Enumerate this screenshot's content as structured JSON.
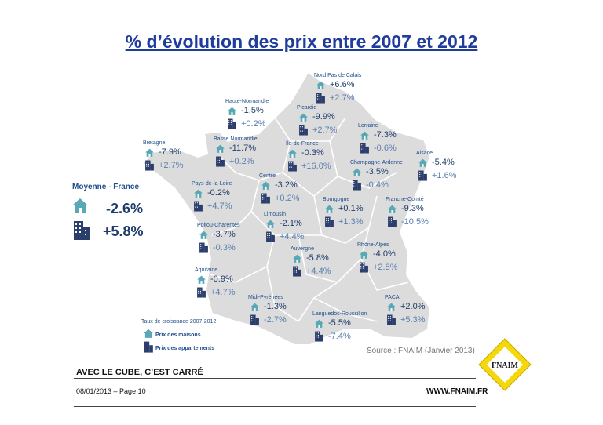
{
  "title": "% d’évolution des prix entre 2007 et 2012",
  "average": {
    "label": "Moyenne - France",
    "house": "-2.6%",
    "apartment": "+5.8%"
  },
  "regions": [
    {
      "name": "Nord Pas de Calais",
      "house": "+6.6%",
      "apartment": "+2.7%"
    },
    {
      "name": "Haute-Normandie",
      "house": "-1.5%",
      "apartment": "+0.2%"
    },
    {
      "name": "Picardie",
      "house": "-9.9%",
      "apartment": "+2.7%"
    },
    {
      "name": "Lorraine",
      "house": "-7.3%",
      "apartment": "-0.6%"
    },
    {
      "name": "Bretagne",
      "house": "-7.9%",
      "apartment": "+2.7%"
    },
    {
      "name": "Basse Normandie",
      "house": "-11.7%",
      "apartment": "+0.2%"
    },
    {
      "name": "Ile-de-France",
      "house": "-0.3%",
      "apartment": "+16.0%"
    },
    {
      "name": "Alsace",
      "house": "-5.4%",
      "apartment": "+1.6%"
    },
    {
      "name": "Champagne-Ardenne",
      "house": "-3.5%",
      "apartment": "-0.4%"
    },
    {
      "name": "Pays-de-la-Loire",
      "house": "-0.2%",
      "apartment": "+4.7%"
    },
    {
      "name": "Centre",
      "house": "-3.2%",
      "apartment": "+0.2%"
    },
    {
      "name": "Bourgogne",
      "house": "+0.1%",
      "apartment": "+1.3%"
    },
    {
      "name": "Franche-Comté",
      "house": "-9.3%",
      "apartment": "-10.5%"
    },
    {
      "name": "Limousin",
      "house": "-2.1%",
      "apartment": "+4.4%"
    },
    {
      "name": "Poitou-Charentes",
      "house": "-3.7%",
      "apartment": "-0.3%"
    },
    {
      "name": "Rhône-Alpes",
      "house": "-4.0%",
      "apartment": "+2.8%"
    },
    {
      "name": "Auvergne",
      "house": "-5.8%",
      "apartment": "+4.4%"
    },
    {
      "name": "Aquitaine",
      "house": "-0.9%",
      "apartment": "+4.7%"
    },
    {
      "name": "Midi-Pyrénées",
      "house": "-1.3%",
      "apartment": "-2.7%"
    },
    {
      "name": "PACA",
      "house": "+2.0%",
      "apartment": "+5.3%"
    },
    {
      "name": "Languedoc-Roussillon",
      "house": "-5.5%",
      "apartment": "-7.4%"
    }
  ],
  "legend": {
    "title": "Taux de croissance 2007-2012",
    "house": "Prix des maisons",
    "apartment": "Prix des appartements"
  },
  "source": "Source : FNAIM (Janvier 2013)",
  "logo_text": "FNAIM",
  "footer": {
    "tagline": "AVEC LE CUBE, C’EST CARRÉ",
    "page_info": "08/01/2013 – Page 10",
    "website": "WWW.FNAIM.FR"
  },
  "colors": {
    "map_fill": "#dcdcdc",
    "map_border": "#ffffff",
    "title": "#1f3c9c",
    "house_icon": "#5aa8b5",
    "apartment_icon": "#2c3e6c",
    "logo": "#f4d80c"
  }
}
